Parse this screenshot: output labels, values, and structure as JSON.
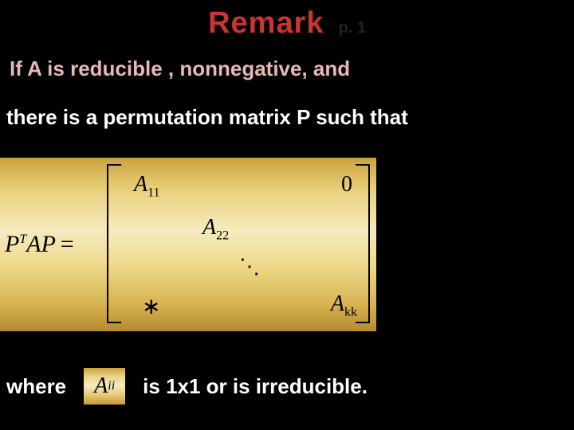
{
  "title": "Remark",
  "pageNum": "p. 1",
  "line1": "If A is reducible , nonnegative, and",
  "line2": "there is a permutation matrix P such that",
  "matrix": {
    "lhs_P": "P",
    "lhs_T": "T",
    "lhs_A": "A",
    "lhs_P2": "P",
    "eq": "=",
    "a11_A": "A",
    "a11_sub": "11",
    "a22_A": "A",
    "a22_sub": "22",
    "zero": "0",
    "dots": "⋱",
    "star": "∗",
    "akk_A": "A",
    "akk_sub": "kk"
  },
  "bottom": {
    "where": "where",
    "aii_A": "A",
    "aii_sub": "ii",
    "irred": "is 1x1 or is irreducible."
  },
  "colors": {
    "bg": "#000000",
    "titleColor": "#cc3333",
    "pinkText": "#e6b8b8",
    "white": "#ffffff"
  }
}
